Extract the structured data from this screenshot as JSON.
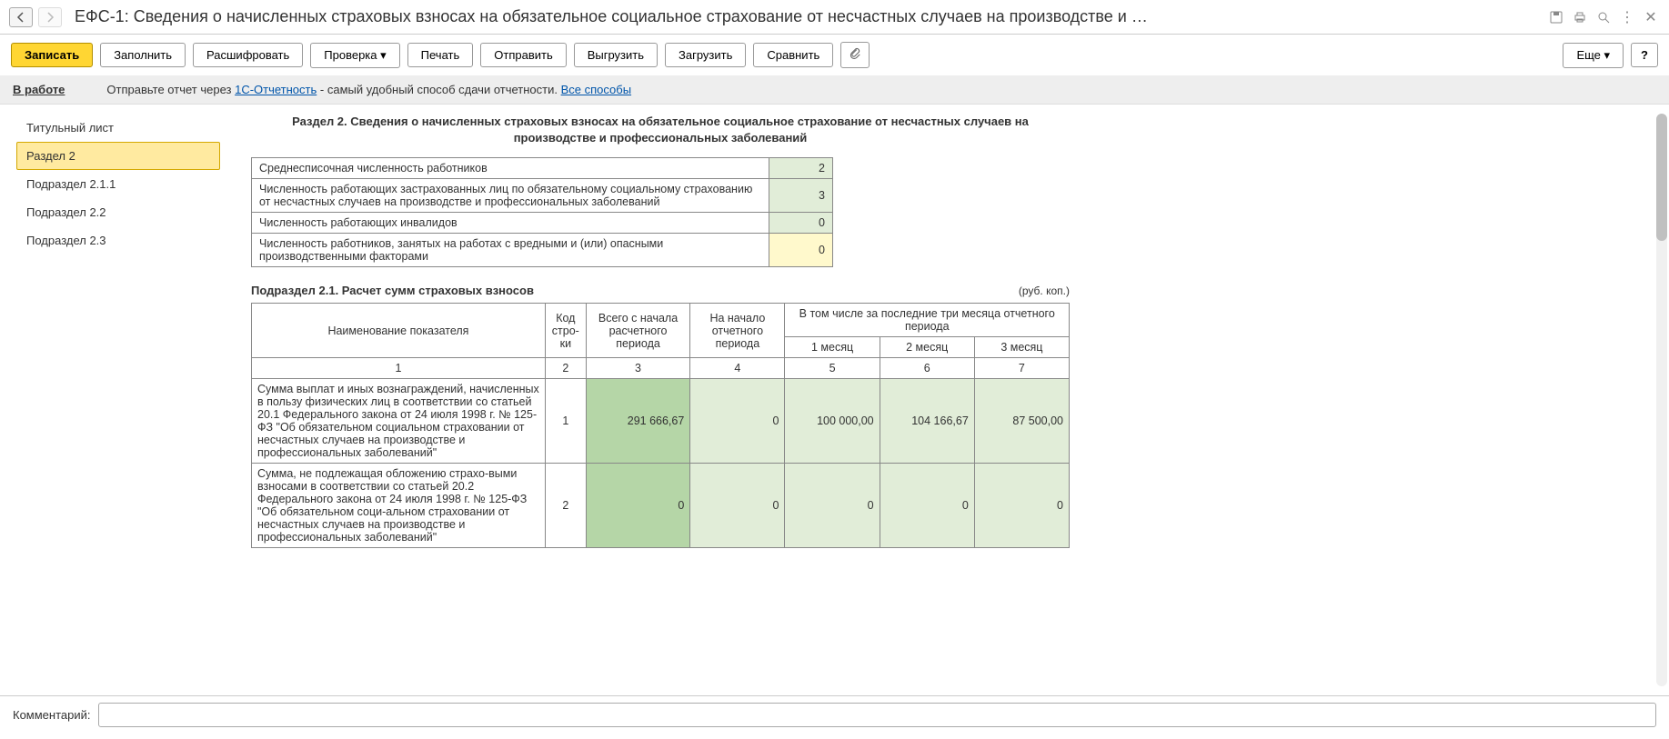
{
  "title": "ЕФС-1: Сведения о начисленных страховых взносах на обязательное социальное страхование от несчастных случаев на производстве и …",
  "toolbar": {
    "save": "Записать",
    "fill": "Заполнить",
    "decode": "Расшифровать",
    "check": "Проверка",
    "print": "Печать",
    "send": "Отправить",
    "export": "Выгрузить",
    "import": "Загрузить",
    "compare": "Сравнить",
    "more": "Еще",
    "help": "?"
  },
  "status": {
    "label": "В работе",
    "text1": "Отправьте отчет через ",
    "link1": "1С-Отчетность",
    "text2": " - самый удобный способ сдачи отчетности. ",
    "link2": "Все способы"
  },
  "sidebar": {
    "items": [
      {
        "label": "Титульный лист"
      },
      {
        "label": "Раздел 2"
      },
      {
        "label": "Подраздел 2.1.1"
      },
      {
        "label": "Подраздел 2.2"
      },
      {
        "label": "Подраздел 2.3"
      }
    ],
    "active_index": 1
  },
  "section": {
    "title": "Раздел 2. Сведения о начисленных страховых взносах на обязательное социальное страхование от несчастных случаев на производстве и профессиональных заболеваний",
    "rows": [
      {
        "label": "Среднесписочная численность работников",
        "value": "2",
        "bg": "bg-green"
      },
      {
        "label": "Численность работающих застрахованных лиц по обязательному социальному страхованию от несчастных случаев на производстве и профессиональных заболеваний",
        "value": "3",
        "bg": "bg-green"
      },
      {
        "label": "Численность работающих инвалидов",
        "value": "0",
        "bg": "bg-green"
      },
      {
        "label": "Численность работников, занятых на работах с вредными и (или) опасными производственными факторами",
        "value": "0",
        "bg": "bg-yellow"
      }
    ]
  },
  "subsection": {
    "title": "Подраздел 2.1. Расчет сумм страховых взносов",
    "unit": "(руб. коп.)",
    "headers": {
      "name": "Наименование показателя",
      "code": "Код стро-ки",
      "total": "Всего с начала расчетного периода",
      "start": "На начало отчетного периода",
      "last3": "В том числе за последние три месяца отчетного периода",
      "m1": "1 месяц",
      "m2": "2 месяц",
      "m3": "3 месяц",
      "n1": "1",
      "n2": "2",
      "n3": "3",
      "n4": "4",
      "n5": "5",
      "n6": "6",
      "n7": "7"
    },
    "rows": [
      {
        "name": "Сумма выплат и иных вознаграждений, начисленных в пользу физических лиц в соответствии со статьей 20.1 Федерального закона от 24 июля 1998 г. № 125-ФЗ \"Об обязательном социальном страховании от несчастных случаев на производстве и профессиональных заболеваний\"",
        "code": "1",
        "total": "291 666,67",
        "start": "0",
        "m1": "100 000,00",
        "m2": "104 166,67",
        "m3": "87 500,00"
      },
      {
        "name": "Сумма, не подлежащая обложению страхо-выми взносами в соответствии со статьей 20.2 Федерального закона от 24 июля 1998 г. № 125-ФЗ \"Об обязательном соци-альном страховании от несчастных случаев на производстве и профессиональных заболеваний\"",
        "code": "2",
        "total": "0",
        "start": "0",
        "m1": "0",
        "m2": "0",
        "m3": "0"
      }
    ]
  },
  "footer": {
    "comment_label": "Комментарий:",
    "comment_value": ""
  },
  "colors": {
    "accent": "#ffd633",
    "green_dark": "#b5d6a7",
    "green_light": "#e1edd8",
    "yellow": "#fff9cc"
  }
}
